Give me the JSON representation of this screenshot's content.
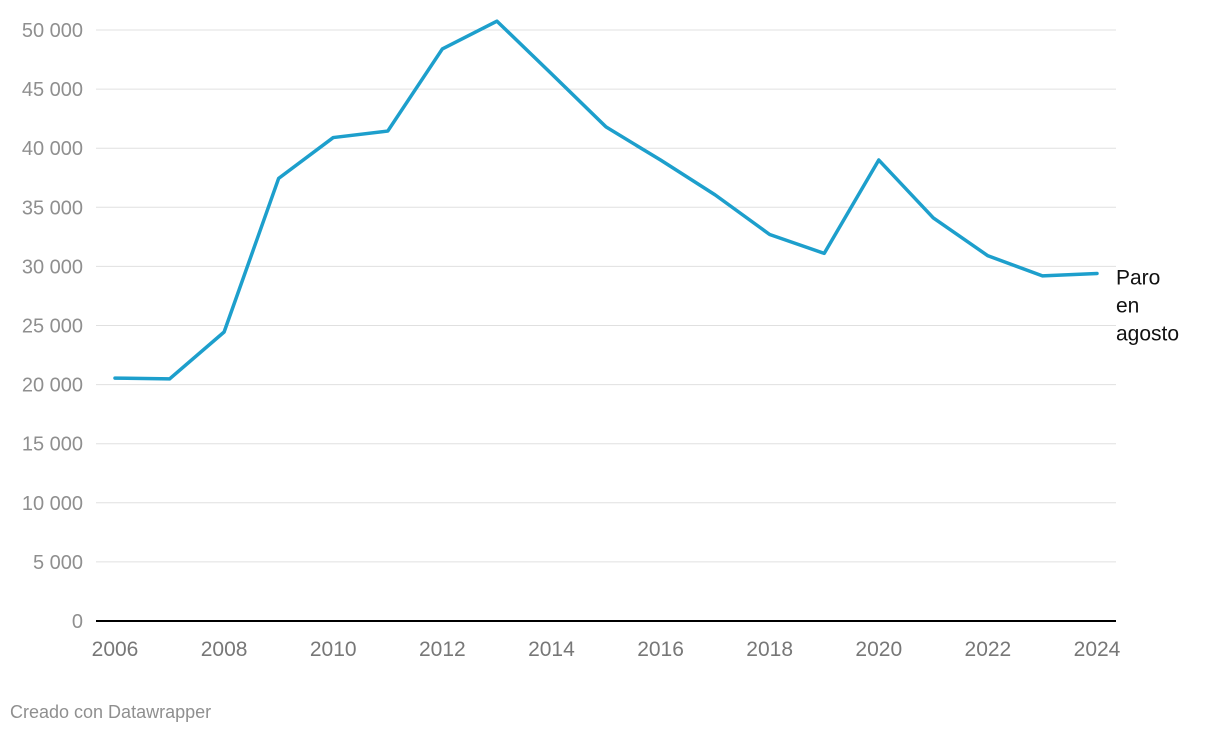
{
  "chart_data": {
    "type": "line",
    "x": [
      2006,
      2007,
      2008,
      2009,
      2010,
      2011,
      2012,
      2013,
      2014,
      2015,
      2016,
      2017,
      2018,
      2019,
      2020,
      2021,
      2022,
      2023,
      2024
    ],
    "series": [
      {
        "name": "Paro en agosto",
        "label_lines": [
          "Paro",
          "en",
          "agosto"
        ],
        "color": "#1d9fcc",
        "values": [
          20550,
          20480,
          24450,
          37450,
          40900,
          41450,
          48400,
          50750,
          46300,
          41800,
          39000,
          36050,
          32700,
          31100,
          39000,
          34100,
          30900,
          29200,
          29400
        ]
      }
    ],
    "y_ticks": [
      0,
      5000,
      10000,
      15000,
      20000,
      25000,
      30000,
      35000,
      40000,
      45000,
      50000
    ],
    "y_tick_labels": [
      "0",
      "5 000",
      "10 000",
      "15 000",
      "20 000",
      "25 000",
      "30 000",
      "35 000",
      "40 000",
      "45 000",
      "50 000"
    ],
    "x_ticks": [
      2006,
      2008,
      2010,
      2012,
      2014,
      2016,
      2018,
      2020,
      2022,
      2024
    ],
    "x_tick_labels": [
      "2006",
      "2008",
      "2010",
      "2012",
      "2014",
      "2016",
      "2018",
      "2020",
      "2022",
      "2024"
    ],
    "ylim": [
      0,
      50000
    ],
    "xlim": [
      2006,
      2024
    ],
    "title": "",
    "xlabel": "",
    "ylabel": "",
    "grid": true,
    "legend": "direct-label-right"
  },
  "footer": {
    "credit": "Creado con Datawrapper"
  }
}
